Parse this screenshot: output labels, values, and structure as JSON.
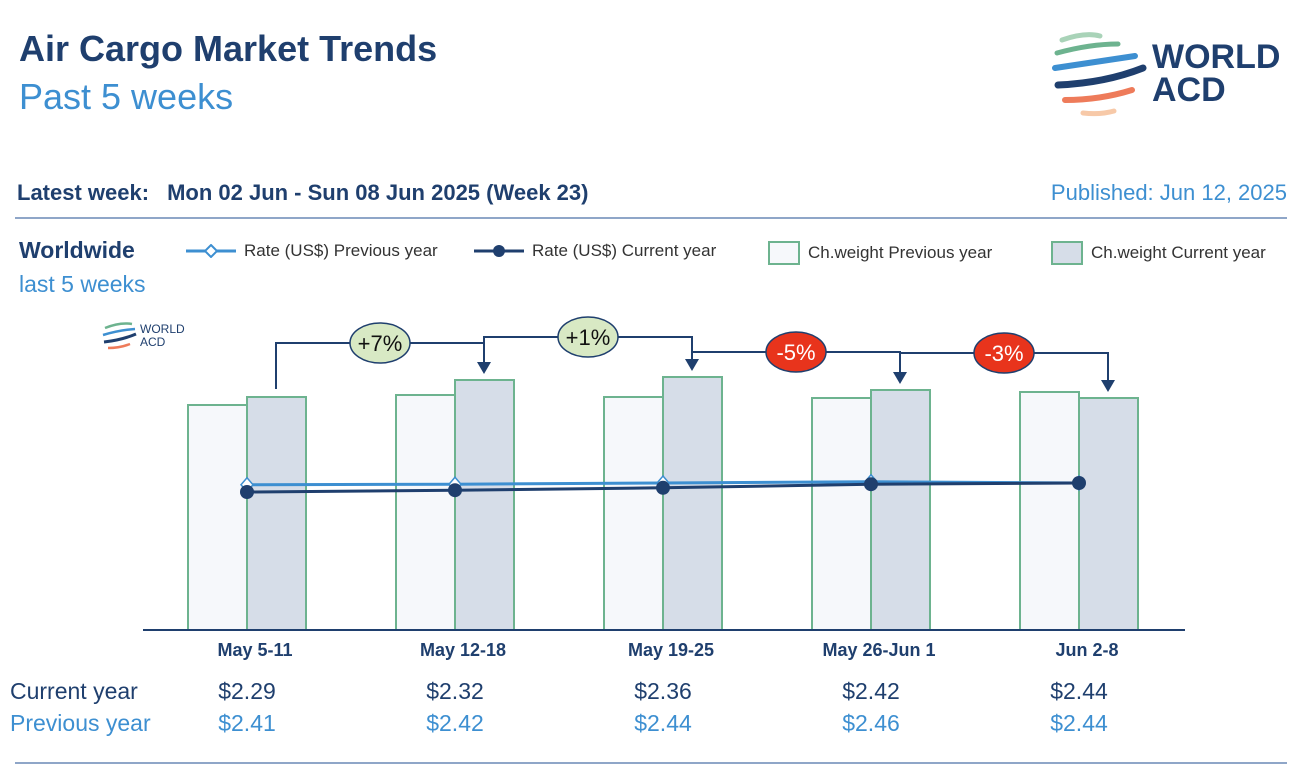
{
  "header": {
    "title": "Air Cargo Market Trends",
    "subtitle": "Past 5 weeks",
    "logo_text": [
      "WORLD",
      "ACD"
    ]
  },
  "latest": {
    "label": "Latest week:",
    "value": "Mon 02 Jun - Sun 08 Jun 2025 (Week 23)"
  },
  "published": "Published: Jun 12, 2025",
  "region": {
    "name": "Worldwide",
    "period": "last 5 weeks"
  },
  "legend": [
    "Rate (US$) Previous year",
    "Rate (US$) Current year",
    "Ch.weight Previous year",
    "Ch.weight Current year"
  ],
  "rows": {
    "current_label": "Current year",
    "previous_label": "Previous year"
  },
  "chart_data": {
    "type": "bar",
    "categories": [
      "May 5-11",
      "May 12-18",
      "May 19-25",
      "May 26-Jun 1",
      "Jun 2-8"
    ],
    "series": [
      {
        "name": "Ch.weight Previous year",
        "kind": "bar",
        "values": [
          225,
          235,
          233,
          232,
          238
        ]
      },
      {
        "name": "Ch.weight Current year",
        "kind": "bar",
        "values": [
          233,
          250,
          253,
          240,
          232
        ]
      },
      {
        "name": "Rate (US$) Previous year",
        "kind": "line",
        "values": [
          2.41,
          2.42,
          2.44,
          2.46,
          2.44
        ],
        "labels": [
          "$2.41",
          "$2.42",
          "$2.44",
          "$2.46",
          "$2.44"
        ]
      },
      {
        "name": "Rate (US$) Current year",
        "kind": "line",
        "values": [
          2.29,
          2.32,
          2.36,
          2.42,
          2.44
        ],
        "labels": [
          "$2.29",
          "$2.32",
          "$2.36",
          "$2.42",
          "$2.44"
        ]
      }
    ],
    "weekly_change": [
      "+7%",
      "+1%",
      "-5%",
      "-3%"
    ],
    "note": "Ch.weight values are relative index estimates (no axis shown)",
    "colors": {
      "navy": "#1f3f6e",
      "blue": "#3d8fd1",
      "green": "#6db38f",
      "bar_cur": "#d6dde8",
      "bar_prev": "#f6f8fb",
      "pos": "#d8e9c4",
      "neg": "#e8341c"
    }
  }
}
